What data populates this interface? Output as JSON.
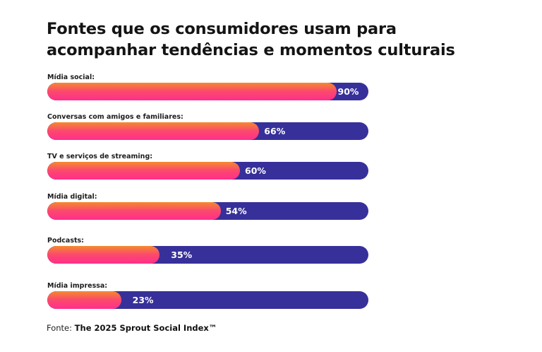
{
  "chart_data": {
    "type": "bar",
    "orientation": "horizontal",
    "title_lines": [
      "Fontes que os consumidores usam para",
      "acompanhar tendências e momentos culturais"
    ],
    "categories": [
      "Mídia social:",
      "Conversas com amigos e familiares:",
      "TV e serviços de streaming:",
      "Mídia digital:",
      "Podcasts:",
      "Mídia impressa:"
    ],
    "values": [
      90,
      66,
      60,
      54,
      35,
      23
    ],
    "value_labels": [
      "90%",
      "66%",
      "60%",
      "54%",
      "35%",
      "23%"
    ],
    "xlim": [
      0,
      100
    ],
    "grid": false,
    "colors": {
      "fill_top": "#f58a2e",
      "fill_bottom": "#ff2e8c",
      "track": "#37309a"
    }
  },
  "source": {
    "prefix": "Fonte: ",
    "name": "The 2025 Sprout Social Index™"
  }
}
